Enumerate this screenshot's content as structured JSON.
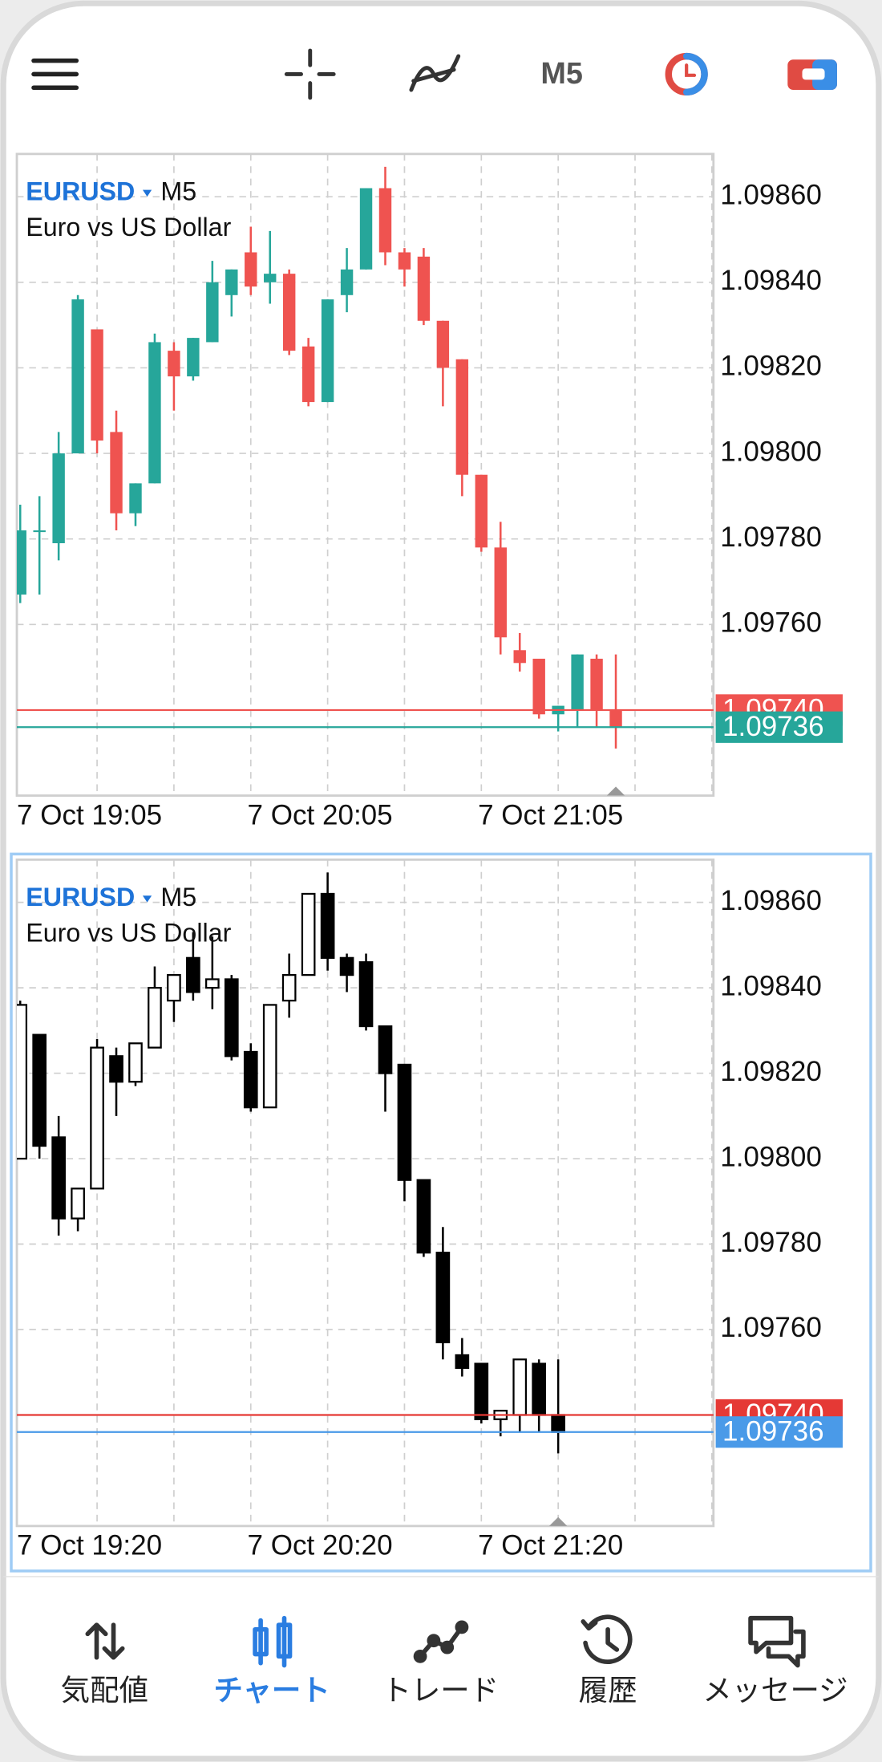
{
  "toolbar": {
    "timeframe": "M5"
  },
  "chart_data": [
    {
      "type": "candlestick",
      "symbol": "EURUSD",
      "timeframe": "M5",
      "description": "Euro vs US Dollar",
      "categories": [
        "7 Oct 19:05",
        null,
        null,
        null,
        null,
        null,
        null,
        null,
        null,
        null,
        null,
        null,
        "7 Oct 20:05",
        null,
        null,
        null,
        null,
        null,
        null,
        null,
        null,
        null,
        null,
        null,
        "7 Oct 21:05",
        null,
        null,
        null,
        null,
        null,
        null,
        null
      ],
      "open": [
        1.09767,
        1.09782,
        1.09779,
        1.098,
        1.09829,
        1.09805,
        1.09786,
        1.09793,
        1.09824,
        1.09818,
        1.09826,
        1.09837,
        1.09847,
        1.0984,
        1.09842,
        1.09825,
        1.09812,
        1.09837,
        1.09843,
        1.09862,
        1.09847,
        1.09846,
        1.09831,
        1.09822,
        1.09795,
        1.09778,
        1.09754,
        1.09752,
        1.09739,
        1.0974,
        1.09752,
        1.0974
      ],
      "high": [
        1.09788,
        1.0979,
        1.09805,
        1.09837,
        1.09829,
        1.0981,
        1.09793,
        1.09828,
        1.09826,
        1.09827,
        1.09845,
        1.09843,
        1.09853,
        1.09852,
        1.09843,
        1.09827,
        1.09836,
        1.09848,
        1.09862,
        1.09867,
        1.09848,
        1.09848,
        1.09831,
        1.09822,
        1.09795,
        1.09784,
        1.09758,
        1.09752,
        1.09741,
        1.09753,
        1.09753,
        1.09753
      ],
      "low": [
        1.09765,
        1.09767,
        1.09775,
        1.098,
        1.098,
        1.09782,
        1.09783,
        1.09793,
        1.0981,
        1.09817,
        1.09826,
        1.09832,
        1.09837,
        1.09835,
        1.09823,
        1.09811,
        1.09812,
        1.09833,
        1.09843,
        1.09844,
        1.09839,
        1.0983,
        1.09811,
        1.0979,
        1.09777,
        1.09753,
        1.09749,
        1.09738,
        1.09735,
        1.09736,
        1.09736,
        1.09731
      ],
      "close": [
        1.09782,
        1.09782,
        1.098,
        1.09836,
        1.09803,
        1.09786,
        1.09793,
        1.09826,
        1.09818,
        1.09827,
        1.0984,
        1.09843,
        1.09839,
        1.09842,
        1.09824,
        1.09812,
        1.09836,
        1.09843,
        1.09862,
        1.09847,
        1.09843,
        1.09831,
        1.0982,
        1.09795,
        1.09778,
        1.09757,
        1.09751,
        1.09739,
        1.09741,
        1.09753,
        1.0974,
        1.09736
      ],
      "up_color": "#26a69a",
      "down_color": "#ef5350",
      "ask": {
        "value": 1.0974,
        "label": "1.09740",
        "color": "#ef5350"
      },
      "bid": {
        "value": 1.09736,
        "label": "1.09736",
        "color": "#26a69a"
      },
      "ylim": [
        1.0972,
        1.0987
      ],
      "yticks": [
        {
          "value": 1.0986,
          "label": "1.09860"
        },
        {
          "value": 1.0984,
          "label": "1.09840"
        },
        {
          "value": 1.0982,
          "label": "1.09820"
        },
        {
          "value": 1.098,
          "label": "1.09800"
        },
        {
          "value": 1.0978,
          "label": "1.09780"
        },
        {
          "value": 1.0976,
          "label": "1.09760"
        }
      ],
      "grid": true
    },
    {
      "type": "candlestick",
      "symbol": "EURUSD",
      "timeframe": "M5",
      "description": "Euro vs US Dollar",
      "categories": [
        "7 Oct 19:20",
        null,
        null,
        null,
        null,
        null,
        null,
        null,
        null,
        null,
        null,
        null,
        "7 Oct 20:20",
        null,
        null,
        null,
        null,
        null,
        null,
        null,
        null,
        null,
        null,
        null,
        "7 Oct 21:20",
        null,
        null,
        null,
        null
      ],
      "open": [
        1.098,
        1.09829,
        1.09805,
        1.09786,
        1.09793,
        1.09824,
        1.09818,
        1.09826,
        1.09837,
        1.09847,
        1.0984,
        1.09842,
        1.09825,
        1.09812,
        1.09837,
        1.09843,
        1.09862,
        1.09847,
        1.09846,
        1.09831,
        1.09822,
        1.09795,
        1.09778,
        1.09754,
        1.09752,
        1.09739,
        1.0974,
        1.09752,
        1.0974
      ],
      "high": [
        1.09837,
        1.09829,
        1.0981,
        1.09793,
        1.09828,
        1.09826,
        1.09827,
        1.09845,
        1.09843,
        1.09853,
        1.09852,
        1.09843,
        1.09827,
        1.09836,
        1.09848,
        1.09862,
        1.09867,
        1.09848,
        1.09848,
        1.09831,
        1.09822,
        1.09795,
        1.09784,
        1.09758,
        1.09752,
        1.09741,
        1.09753,
        1.09753,
        1.09753
      ],
      "low": [
        1.098,
        1.098,
        1.09782,
        1.09783,
        1.09793,
        1.0981,
        1.09817,
        1.09826,
        1.09832,
        1.09837,
        1.09835,
        1.09823,
        1.09811,
        1.09812,
        1.09833,
        1.09843,
        1.09844,
        1.09839,
        1.0983,
        1.09811,
        1.0979,
        1.09777,
        1.09753,
        1.09749,
        1.09738,
        1.09735,
        1.09736,
        1.09736,
        1.09731
      ],
      "close": [
        1.09836,
        1.09803,
        1.09786,
        1.09793,
        1.09826,
        1.09818,
        1.09827,
        1.0984,
        1.09843,
        1.09839,
        1.09842,
        1.09824,
        1.09812,
        1.09836,
        1.09843,
        1.09862,
        1.09847,
        1.09843,
        1.09831,
        1.0982,
        1.09795,
        1.09778,
        1.09757,
        1.09751,
        1.09739,
        1.09741,
        1.09753,
        1.0974,
        1.09736
      ],
      "up_color": "#ffffff",
      "down_color": "#000000",
      "outline_color": "#000000",
      "ask": {
        "value": 1.0974,
        "label": "1.09740",
        "color": "#e53935"
      },
      "bid": {
        "value": 1.09736,
        "label": "1.09736",
        "color": "#4a9ae8"
      },
      "ylim": [
        1.09714,
        1.0987
      ],
      "yticks": [
        {
          "value": 1.0986,
          "label": "1.09860"
        },
        {
          "value": 1.0984,
          "label": "1.09840"
        },
        {
          "value": 1.0982,
          "label": "1.09820"
        },
        {
          "value": 1.098,
          "label": "1.09800"
        },
        {
          "value": 1.0978,
          "label": "1.09780"
        },
        {
          "value": 1.0976,
          "label": "1.09760"
        }
      ],
      "grid": true
    }
  ],
  "nav": {
    "items": [
      "気配値",
      "チャート",
      "トレード",
      "履歴",
      "メッセージ"
    ],
    "active": 1,
    "active_color": "#2a7de1"
  }
}
